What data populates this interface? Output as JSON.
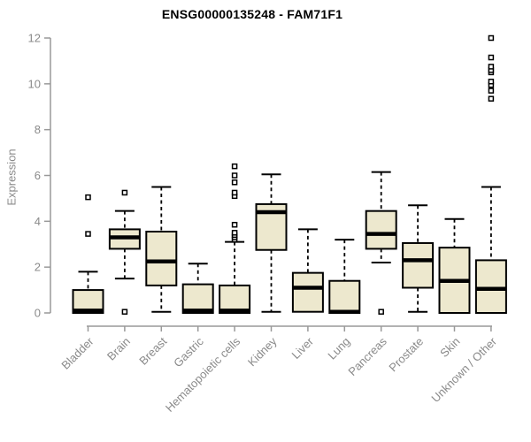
{
  "chart_data": {
    "type": "boxplot",
    "title": "ENSG00000135248 - FAM71F1",
    "xlabel": "",
    "ylabel": "Expression",
    "ylim": [
      0,
      12
    ],
    "yticks": [
      0,
      2,
      4,
      6,
      8,
      10,
      12
    ],
    "grid": false,
    "legend": "none",
    "categories": [
      "Bladder",
      "Brain",
      "Breast",
      "Gastric",
      "Hematopoietic cells",
      "Kidney",
      "Liver",
      "Lung",
      "Pancreas",
      "Prostate",
      "Skin",
      "Unknown / Other"
    ],
    "series": [
      {
        "name": "Bladder",
        "whislo": 0.0,
        "q1": 0.0,
        "med": 0.1,
        "q3": 1.0,
        "whishi": 1.8,
        "outliers": [
          3.45,
          5.05
        ]
      },
      {
        "name": "Brain",
        "whislo": 1.5,
        "q1": 2.8,
        "med": 3.3,
        "q3": 3.65,
        "whishi": 4.45,
        "outliers": [
          0.05,
          5.25
        ]
      },
      {
        "name": "Breast",
        "whislo": 0.05,
        "q1": 1.2,
        "med": 2.25,
        "q3": 3.55,
        "whishi": 5.5,
        "outliers": []
      },
      {
        "name": "Gastric",
        "whislo": 0.0,
        "q1": 0.0,
        "med": 0.1,
        "q3": 1.25,
        "whishi": 2.15,
        "outliers": []
      },
      {
        "name": "Hematopoietic cells",
        "whislo": 0.0,
        "q1": 0.0,
        "med": 0.1,
        "q3": 1.2,
        "whishi": 3.1,
        "outliers": [
          3.2,
          3.3,
          3.4,
          3.5,
          3.85,
          5.1,
          5.25,
          5.7,
          6.0,
          6.4
        ]
      },
      {
        "name": "Kidney",
        "whislo": 0.05,
        "q1": 2.75,
        "med": 4.4,
        "q3": 4.75,
        "whishi": 6.05,
        "outliers": []
      },
      {
        "name": "Liver",
        "whislo": 0.05,
        "q1": 0.05,
        "med": 1.1,
        "q3": 1.75,
        "whishi": 3.65,
        "outliers": []
      },
      {
        "name": "Lung",
        "whislo": 0.0,
        "q1": 0.0,
        "med": 0.05,
        "q3": 1.4,
        "whishi": 3.2,
        "outliers": []
      },
      {
        "name": "Pancreas",
        "whislo": 2.2,
        "q1": 2.8,
        "med": 3.45,
        "q3": 4.45,
        "whishi": 6.15,
        "outliers": [
          0.05
        ]
      },
      {
        "name": "Prostate",
        "whislo": 0.05,
        "q1": 1.1,
        "med": 2.3,
        "q3": 3.05,
        "whishi": 4.7,
        "outliers": []
      },
      {
        "name": "Skin",
        "whislo": 0.0,
        "q1": 0.0,
        "med": 1.4,
        "q3": 2.85,
        "whishi": 4.1,
        "outliers": []
      },
      {
        "name": "Unknown / Other",
        "whislo": 0.0,
        "q1": 0.0,
        "med": 1.05,
        "q3": 2.3,
        "whishi": 5.5,
        "outliers": [
          9.35,
          9.7,
          9.95,
          10.1,
          10.5,
          10.6,
          10.75,
          11.15,
          12.0
        ]
      }
    ],
    "style": {
      "box_fill": "#ede8ce",
      "box_stroke": "#000000",
      "median_color": "#000000",
      "whisker_style": "dashed",
      "outlier_marker": "open-square",
      "axis_color": "#999999",
      "tick_text_color": "#8a8a8a",
      "title_color": "#000000",
      "background": "#ffffff"
    }
  }
}
